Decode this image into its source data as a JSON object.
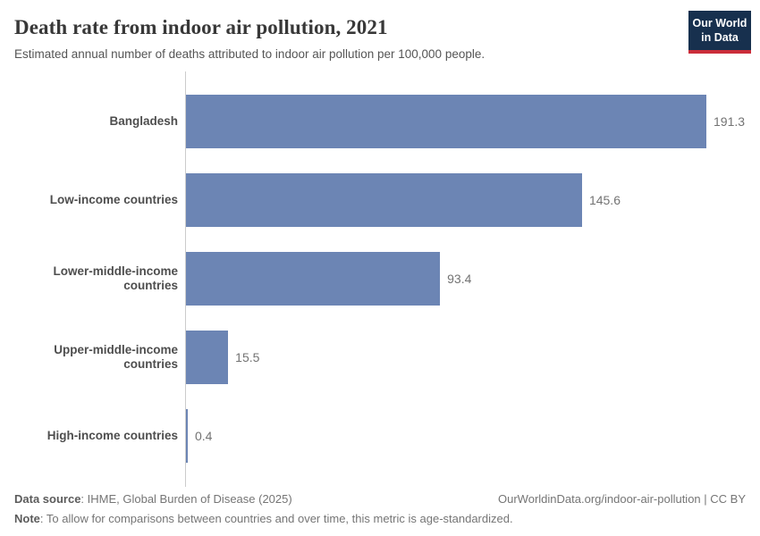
{
  "header": {
    "title": "Death rate from indoor air pollution, 2021",
    "subtitle": "Estimated annual number of deaths attributed to indoor air pollution per 100,000 people.",
    "logo": {
      "line1": "Our World",
      "line2": "in Data"
    }
  },
  "chart_data": {
    "type": "bar",
    "orientation": "horizontal",
    "title": "Death rate from indoor air pollution, 2021",
    "xlabel": "",
    "ylabel": "",
    "xlim": [
      0,
      191.3
    ],
    "grid": false,
    "legend": "none",
    "categories": [
      "Bangladesh",
      "Low-income countries",
      "Lower-middle-income countries",
      "Upper-middle-income countries",
      "High-income countries"
    ],
    "values": [
      191.3,
      145.6,
      93.4,
      15.5,
      0.4
    ],
    "value_labels": [
      "191.3",
      "145.6",
      "93.4",
      "15.5",
      "0.4"
    ]
  },
  "colors": {
    "bar": "#6c85b4",
    "logo_navy": "#17304e",
    "logo_red": "#cb2d3a",
    "axis_line": "#cccccc"
  },
  "footer": {
    "datasource_label": "Data source",
    "datasource_rest": ": IHME, Global Burden of Disease (2025)",
    "note_label": "Note",
    "note_rest": ": To allow for comparisons between countries and over time, this metric is age-standardized.",
    "link": "OurWorldinData.org/indoor-air-pollution | CC BY"
  }
}
